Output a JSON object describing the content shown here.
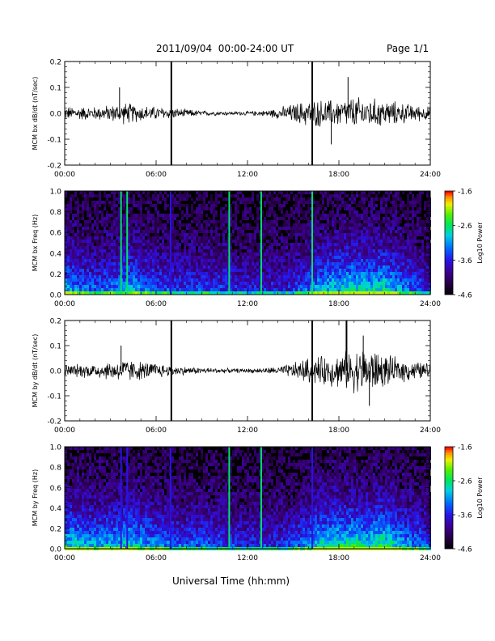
{
  "header": {
    "title": "2011/09/04  00:00-24:00 UT",
    "page": "Page 1/1"
  },
  "footer": {
    "xlabel": "Universal Time (hh:mm)"
  },
  "chart_data": [
    {
      "type": "line",
      "ylabel": "MCM bx dB/dt (nT/sec)",
      "xlim": [
        0,
        24
      ],
      "ylim": [
        -0.2,
        0.2
      ],
      "xticks": [
        "00:00",
        "06:00",
        "12:00",
        "18:00",
        "24:00"
      ],
      "yticks": [
        "-0.2",
        "-0.1",
        "0.0",
        "0.1",
        "0.2"
      ],
      "envelope": {
        "x": [
          0,
          1,
          2,
          3,
          4,
          5,
          6,
          7,
          8,
          9,
          10,
          11,
          12,
          13,
          14,
          15,
          16,
          17,
          18,
          19,
          20,
          21,
          22,
          23,
          24
        ],
        "amplitude": [
          0.025,
          0.025,
          0.025,
          0.03,
          0.04,
          0.03,
          0.025,
          0.02,
          0.015,
          0.01,
          0.008,
          0.007,
          0.008,
          0.01,
          0.02,
          0.035,
          0.05,
          0.05,
          0.05,
          0.06,
          0.055,
          0.05,
          0.04,
          0.03,
          0.025
        ]
      },
      "spikes": [
        {
          "x": 3.6,
          "y": 0.1
        },
        {
          "x": 7.0,
          "y": 0.2
        },
        {
          "x": 7.0,
          "y": -0.2
        },
        {
          "x": 16.25,
          "y": 0.2
        },
        {
          "x": 16.25,
          "y": -0.2
        },
        {
          "x": 18.6,
          "y": 0.14
        },
        {
          "x": 17.5,
          "y": -0.12
        }
      ]
    },
    {
      "type": "heatmap",
      "ylabel": "MCM bx Freq (Hz)",
      "colorbar_label": "Log10 Power",
      "colorbar_ticks": [
        "-1.6",
        "-2.6",
        "-3.6",
        "-4.6"
      ],
      "zlim": [
        -4.6,
        -1.6
      ],
      "xlim": [
        0,
        24
      ],
      "ylim": [
        0,
        1.0
      ],
      "xticks": [
        "00:00",
        "06:00",
        "12:00",
        "18:00",
        "24:00"
      ],
      "yticks": [
        "0.0",
        "0.2",
        "0.4",
        "0.6",
        "0.8",
        "1.0"
      ],
      "activity_by_hour": [
        0.55,
        0.45,
        0.4,
        0.45,
        0.55,
        0.45,
        0.4,
        0.35,
        0.35,
        0.35,
        0.35,
        0.3,
        0.3,
        0.3,
        0.3,
        0.4,
        0.55,
        0.6,
        0.65,
        0.6,
        0.65,
        0.5,
        0.4,
        0.3
      ],
      "vertical_lines": [
        {
          "x": 3.7,
          "level": -2.6
        },
        {
          "x": 4.1,
          "level": -2.6
        },
        {
          "x": 6.95,
          "level": -3.6
        },
        {
          "x": 10.8,
          "level": -2.6
        },
        {
          "x": 12.9,
          "level": -2.6
        },
        {
          "x": 16.25,
          "level": -2.6
        }
      ]
    },
    {
      "type": "line",
      "ylabel": "MCM by dB/dt (nT/sec)",
      "xlim": [
        0,
        24
      ],
      "ylim": [
        -0.2,
        0.2
      ],
      "xticks": [
        "00:00",
        "06:00",
        "12:00",
        "18:00",
        "24:00"
      ],
      "yticks": [
        "-0.2",
        "-0.1",
        "0.0",
        "0.1",
        "0.2"
      ],
      "envelope": {
        "x": [
          0,
          1,
          2,
          3,
          4,
          5,
          6,
          7,
          8,
          9,
          10,
          11,
          12,
          13,
          14,
          15,
          16,
          17,
          18,
          19,
          20,
          21,
          22,
          23,
          24
        ],
        "amplitude": [
          0.025,
          0.025,
          0.03,
          0.035,
          0.045,
          0.035,
          0.03,
          0.02,
          0.015,
          0.012,
          0.01,
          0.008,
          0.008,
          0.01,
          0.015,
          0.03,
          0.05,
          0.055,
          0.065,
          0.08,
          0.09,
          0.06,
          0.045,
          0.035,
          0.03
        ]
      },
      "spikes": [
        {
          "x": 3.7,
          "y": 0.1
        },
        {
          "x": 7.0,
          "y": 0.2
        },
        {
          "x": 7.0,
          "y": -0.2
        },
        {
          "x": 16.25,
          "y": 0.2
        },
        {
          "x": 16.25,
          "y": -0.2
        },
        {
          "x": 18.5,
          "y": 0.2
        },
        {
          "x": 19.6,
          "y": 0.14
        },
        {
          "x": 20.0,
          "y": -0.14
        }
      ]
    },
    {
      "type": "heatmap",
      "ylabel": "MCM by Freq (Hz)",
      "colorbar_label": "Log10 Power",
      "colorbar_ticks": [
        "-1.6",
        "-2.6",
        "-3.6",
        "-4.6"
      ],
      "zlim": [
        -4.6,
        -1.6
      ],
      "xlim": [
        0,
        24
      ],
      "ylim": [
        0,
        1.0
      ],
      "xticks": [
        "00:00",
        "06:00",
        "12:00",
        "18:00",
        "24:00"
      ],
      "yticks": [
        "0.0",
        "0.2",
        "0.4",
        "0.6",
        "0.8",
        "1.0"
      ],
      "activity_by_hour": [
        0.6,
        0.55,
        0.5,
        0.55,
        0.6,
        0.5,
        0.45,
        0.4,
        0.4,
        0.38,
        0.35,
        0.32,
        0.32,
        0.32,
        0.35,
        0.45,
        0.6,
        0.65,
        0.65,
        0.6,
        0.7,
        0.55,
        0.45,
        0.35
      ],
      "vertical_lines": [
        {
          "x": 3.7,
          "level": -3.6
        },
        {
          "x": 4.1,
          "level": -3.6
        },
        {
          "x": 6.95,
          "level": -3.6
        },
        {
          "x": 10.8,
          "level": -2.6
        },
        {
          "x": 12.9,
          "level": -2.6
        },
        {
          "x": 16.25,
          "level": -3.6
        }
      ]
    }
  ]
}
